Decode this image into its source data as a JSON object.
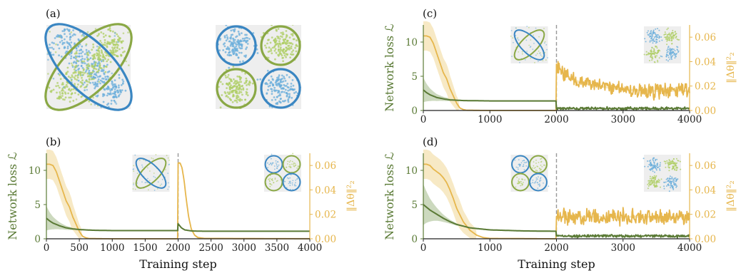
{
  "colors": {
    "loss": "#5a7a35",
    "loss_band": "#b7c9a2",
    "weight": "#e6b64c",
    "weight_band": "#f3e0ad",
    "blue": "#3a86c2",
    "green": "#8aa845",
    "blue_points": "#6aaedb",
    "green_points": "#aecd63",
    "inset_bg": "#eeeeee"
  },
  "panel_a": {
    "label": "(a)",
    "left_inset": "two diagonal ellipses: blue ellipse along main diagonal, green ellipse along anti-diagonal",
    "right_inset": "four circles: blue top-left, green top-right, green bottom-left, blue bottom-right"
  },
  "chart_data": [
    {
      "panel": "(b)",
      "type": "line",
      "xlabel": "Training step",
      "ylabel_left": "Network loss ℒ",
      "ylabel_right": "‖Δθ‖²₂",
      "xlim": [
        0,
        4000
      ],
      "ylim_left": [
        0,
        12.5
      ],
      "ylim_right": [
        0,
        0.07
      ],
      "xticks": [
        "0",
        "500",
        "1000",
        "1500",
        "2000",
        "2500",
        "3000",
        "3500",
        "4000"
      ],
      "yticks_left": [
        "0",
        "5",
        "10"
      ],
      "yticks_right": [
        "0.00",
        "0.02",
        "0.04",
        "0.06"
      ],
      "task_switch": 2000,
      "series": [
        {
          "axis": "left",
          "x": [
            0,
            50,
            100,
            200,
            300,
            400,
            500,
            700,
            1000,
            1500,
            1999,
            2000,
            2050,
            2100,
            2200,
            2400,
            3000,
            4000
          ],
          "y": [
            3.0,
            2.6,
            2.3,
            1.9,
            1.6,
            1.45,
            1.35,
            1.25,
            1.2,
            1.2,
            1.2,
            2.2,
            1.6,
            1.3,
            1.15,
            1.1,
            1.1,
            1.1
          ]
        },
        {
          "axis": "right",
          "x": [
            0,
            50,
            100,
            150,
            200,
            250,
            300,
            350,
            400,
            450,
            500,
            550,
            600,
            650,
            1000,
            1999,
            2000,
            2030,
            2060,
            2090,
            2120,
            2160,
            2200,
            2250,
            2300,
            2400,
            4000
          ],
          "y": [
            0.061,
            0.061,
            0.06,
            0.055,
            0.047,
            0.039,
            0.031,
            0.026,
            0.018,
            0.012,
            0.006,
            0.002,
            0.0008,
            0.0002,
            0.0,
            0.0,
            0.062,
            0.062,
            0.058,
            0.048,
            0.034,
            0.018,
            0.008,
            0.003,
            0.001,
            0.0002,
            0.0
          ]
        }
      ]
    },
    {
      "panel": "(c)",
      "type": "line",
      "xlabel": "",
      "ylabel_left": "Network loss ℒ",
      "ylabel_right": "‖Δθ‖²₂",
      "xlim": [
        0,
        4000
      ],
      "ylim_left": [
        0,
        12.5
      ],
      "ylim_right": [
        0,
        0.07
      ],
      "xticks": [
        "0",
        "1000",
        "2000",
        "3000",
        "4000"
      ],
      "yticks_left": [
        "0",
        "5",
        "10"
      ],
      "yticks_right": [
        "0.00",
        "0.02",
        "0.04",
        "0.06"
      ],
      "task_switch": 2000,
      "series": [
        {
          "axis": "left",
          "x": [
            0,
            50,
            100,
            200,
            300,
            400,
            600,
            1000,
            1999,
            2000,
            4000
          ],
          "y": [
            3.0,
            2.6,
            2.3,
            1.9,
            1.7,
            1.55,
            1.45,
            1.4,
            1.4,
            0.3,
            0.3
          ],
          "noise_after": 2000,
          "noise_amp": 0.15
        },
        {
          "axis": "right",
          "x": [
            0,
            50,
            100,
            150,
            200,
            250,
            300,
            350,
            400,
            450,
            500,
            550,
            600,
            650,
            1000,
            1999,
            2000,
            2050,
            2100,
            2200,
            2400,
            2600,
            3000,
            3500,
            4000
          ],
          "y": [
            0.061,
            0.061,
            0.06,
            0.055,
            0.047,
            0.039,
            0.031,
            0.026,
            0.018,
            0.012,
            0.006,
            0.002,
            0.0008,
            0.0002,
            0.0,
            0.0,
            0.038,
            0.034,
            0.031,
            0.027,
            0.022,
            0.02,
            0.017,
            0.016,
            0.016
          ],
          "noise_after": 2000,
          "noise_amp": 0.005
        }
      ]
    },
    {
      "panel": "(d)",
      "type": "line",
      "xlabel": "Training step",
      "ylabel_left": "Network loss ℒ",
      "ylabel_right": "‖Δθ‖²₂",
      "xlim": [
        0,
        4000
      ],
      "ylim_left": [
        0,
        12.5
      ],
      "ylim_right": [
        0,
        0.07
      ],
      "xticks": [
        "0",
        "1000",
        "2000",
        "3000",
        "4000"
      ],
      "yticks_left": [
        "0",
        "5",
        "10"
      ],
      "yticks_right": [
        "0.00",
        "0.02",
        "0.04",
        "0.06"
      ],
      "task_switch": 2000,
      "series": [
        {
          "axis": "left",
          "x": [
            0,
            50,
            100,
            200,
            300,
            400,
            500,
            700,
            1000,
            1500,
            1999,
            2000,
            4000
          ],
          "y": [
            5.0,
            4.6,
            4.2,
            3.6,
            3.0,
            2.5,
            2.1,
            1.6,
            1.3,
            1.15,
            1.1,
            0.4,
            0.4
          ],
          "noise_after": 2000,
          "noise_amp": 0.15
        },
        {
          "axis": "right",
          "x": [
            0,
            50,
            100,
            150,
            200,
            250,
            300,
            350,
            400,
            450,
            500,
            600,
            700,
            800,
            900,
            1000,
            1999,
            2000,
            4000
          ],
          "y": [
            0.061,
            0.061,
            0.06,
            0.057,
            0.055,
            0.053,
            0.05,
            0.046,
            0.04,
            0.033,
            0.025,
            0.014,
            0.007,
            0.003,
            0.001,
            0.0003,
            0.0,
            0.018,
            0.018
          ],
          "noise_after": 2000,
          "noise_amp": 0.005
        }
      ]
    }
  ]
}
